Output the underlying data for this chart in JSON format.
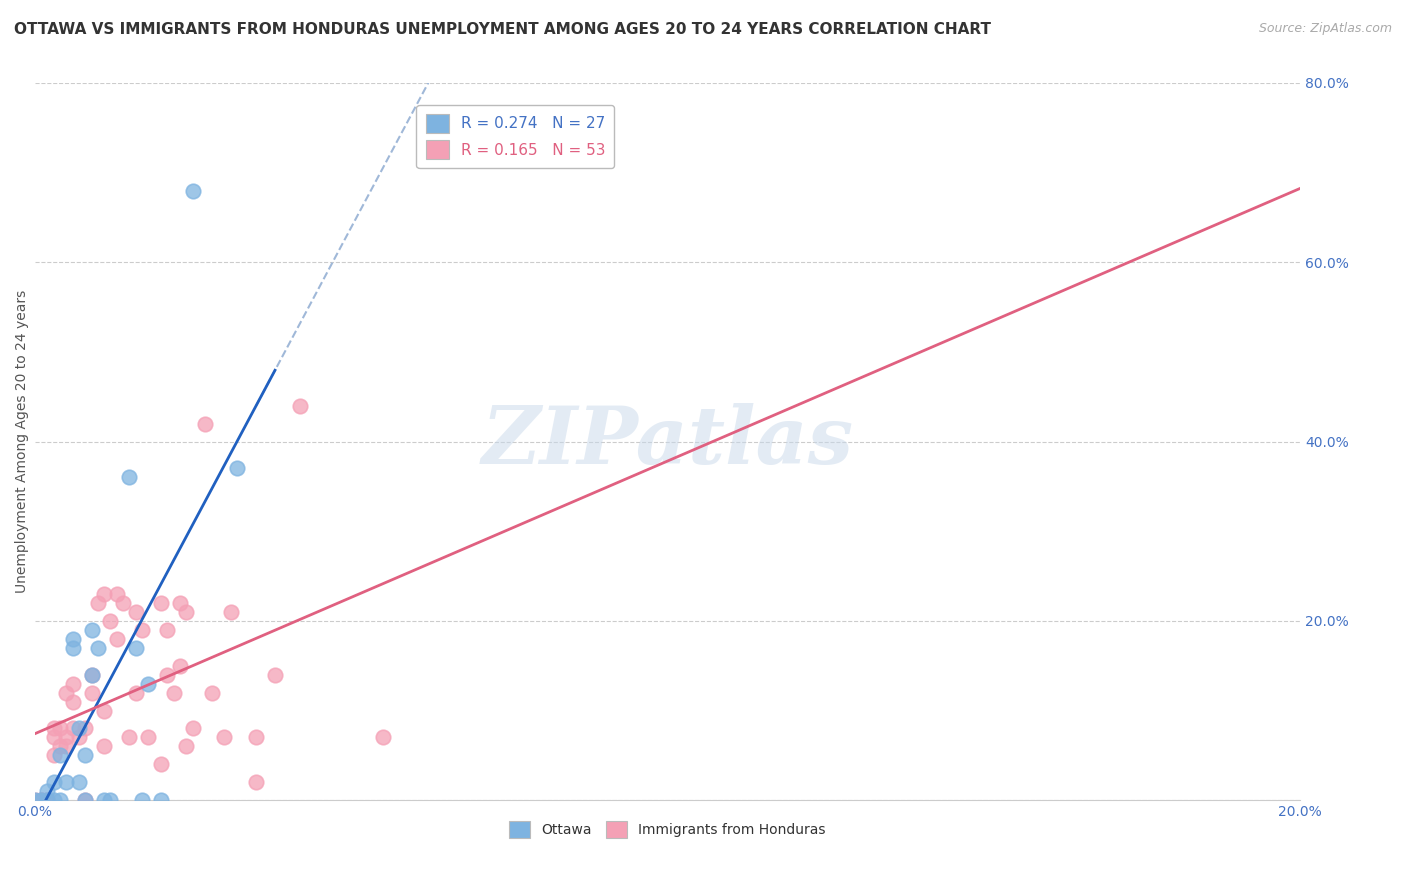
{
  "title": "OTTAWA VS IMMIGRANTS FROM HONDURAS UNEMPLOYMENT AMONG AGES 20 TO 24 YEARS CORRELATION CHART",
  "source": "Source: ZipAtlas.com",
  "ylabel": "Unemployment Among Ages 20 to 24 years",
  "xlabel": "",
  "xlim": [
    0.0,
    0.2
  ],
  "ylim": [
    0.0,
    0.8
  ],
  "xticks": [
    0.0,
    0.02,
    0.04,
    0.06,
    0.08,
    0.1,
    0.12,
    0.14,
    0.16,
    0.18,
    0.2
  ],
  "yticks": [
    0.0,
    0.2,
    0.4,
    0.6,
    0.8
  ],
  "ottawa_R": "0.274",
  "ottawa_N": "27",
  "honduras_R": "0.165",
  "honduras_N": "53",
  "ottawa_color": "#7eb3e0",
  "honduras_color": "#f4a0b5",
  "trendline_ottawa_color": "#2060c0",
  "trendline_honduras_color": "#e06080",
  "trendline_dashed_color": "#a0b8d8",
  "background_color": "#ffffff",
  "grid_color": "#cccccc",
  "ottawa_points": [
    [
      0.0,
      0.0
    ],
    [
      0.001,
      0.0
    ],
    [
      0.002,
      0.0
    ],
    [
      0.002,
      0.01
    ],
    [
      0.003,
      0.0
    ],
    [
      0.003,
      0.02
    ],
    [
      0.004,
      0.05
    ],
    [
      0.004,
      0.0
    ],
    [
      0.005,
      0.02
    ],
    [
      0.006,
      0.18
    ],
    [
      0.006,
      0.17
    ],
    [
      0.007,
      0.02
    ],
    [
      0.007,
      0.08
    ],
    [
      0.008,
      0.0
    ],
    [
      0.008,
      0.05
    ],
    [
      0.009,
      0.19
    ],
    [
      0.009,
      0.14
    ],
    [
      0.01,
      0.17
    ],
    [
      0.011,
      0.0
    ],
    [
      0.012,
      0.0
    ],
    [
      0.015,
      0.36
    ],
    [
      0.016,
      0.17
    ],
    [
      0.017,
      0.0
    ],
    [
      0.018,
      0.13
    ],
    [
      0.02,
      0.0
    ],
    [
      0.025,
      0.68
    ],
    [
      0.032,
      0.37
    ]
  ],
  "honduras_points": [
    [
      0.0,
      0.0
    ],
    [
      0.001,
      0.0
    ],
    [
      0.001,
      0.0
    ],
    [
      0.002,
      0.0
    ],
    [
      0.002,
      0.0
    ],
    [
      0.003,
      0.05
    ],
    [
      0.003,
      0.07
    ],
    [
      0.003,
      0.08
    ],
    [
      0.004,
      0.08
    ],
    [
      0.004,
      0.06
    ],
    [
      0.005,
      0.12
    ],
    [
      0.005,
      0.07
    ],
    [
      0.005,
      0.06
    ],
    [
      0.006,
      0.11
    ],
    [
      0.006,
      0.13
    ],
    [
      0.006,
      0.08
    ],
    [
      0.007,
      0.07
    ],
    [
      0.008,
      0.08
    ],
    [
      0.008,
      0.0
    ],
    [
      0.009,
      0.14
    ],
    [
      0.009,
      0.12
    ],
    [
      0.01,
      0.22
    ],
    [
      0.011,
      0.23
    ],
    [
      0.011,
      0.06
    ],
    [
      0.011,
      0.1
    ],
    [
      0.012,
      0.2
    ],
    [
      0.013,
      0.23
    ],
    [
      0.013,
      0.18
    ],
    [
      0.014,
      0.22
    ],
    [
      0.015,
      0.07
    ],
    [
      0.016,
      0.21
    ],
    [
      0.016,
      0.12
    ],
    [
      0.017,
      0.19
    ],
    [
      0.018,
      0.07
    ],
    [
      0.02,
      0.22
    ],
    [
      0.02,
      0.04
    ],
    [
      0.021,
      0.19
    ],
    [
      0.021,
      0.14
    ],
    [
      0.022,
      0.12
    ],
    [
      0.023,
      0.15
    ],
    [
      0.023,
      0.22
    ],
    [
      0.024,
      0.21
    ],
    [
      0.024,
      0.06
    ],
    [
      0.025,
      0.08
    ],
    [
      0.027,
      0.42
    ],
    [
      0.028,
      0.12
    ],
    [
      0.03,
      0.07
    ],
    [
      0.031,
      0.21
    ],
    [
      0.035,
      0.07
    ],
    [
      0.035,
      0.02
    ],
    [
      0.038,
      0.14
    ],
    [
      0.042,
      0.44
    ],
    [
      0.055,
      0.07
    ]
  ],
  "watermark_text": "ZIPatlas",
  "title_fontsize": 11,
  "axis_label_fontsize": 10,
  "tick_fontsize": 10,
  "legend_fontsize": 11,
  "tick_color": "#4472c4"
}
